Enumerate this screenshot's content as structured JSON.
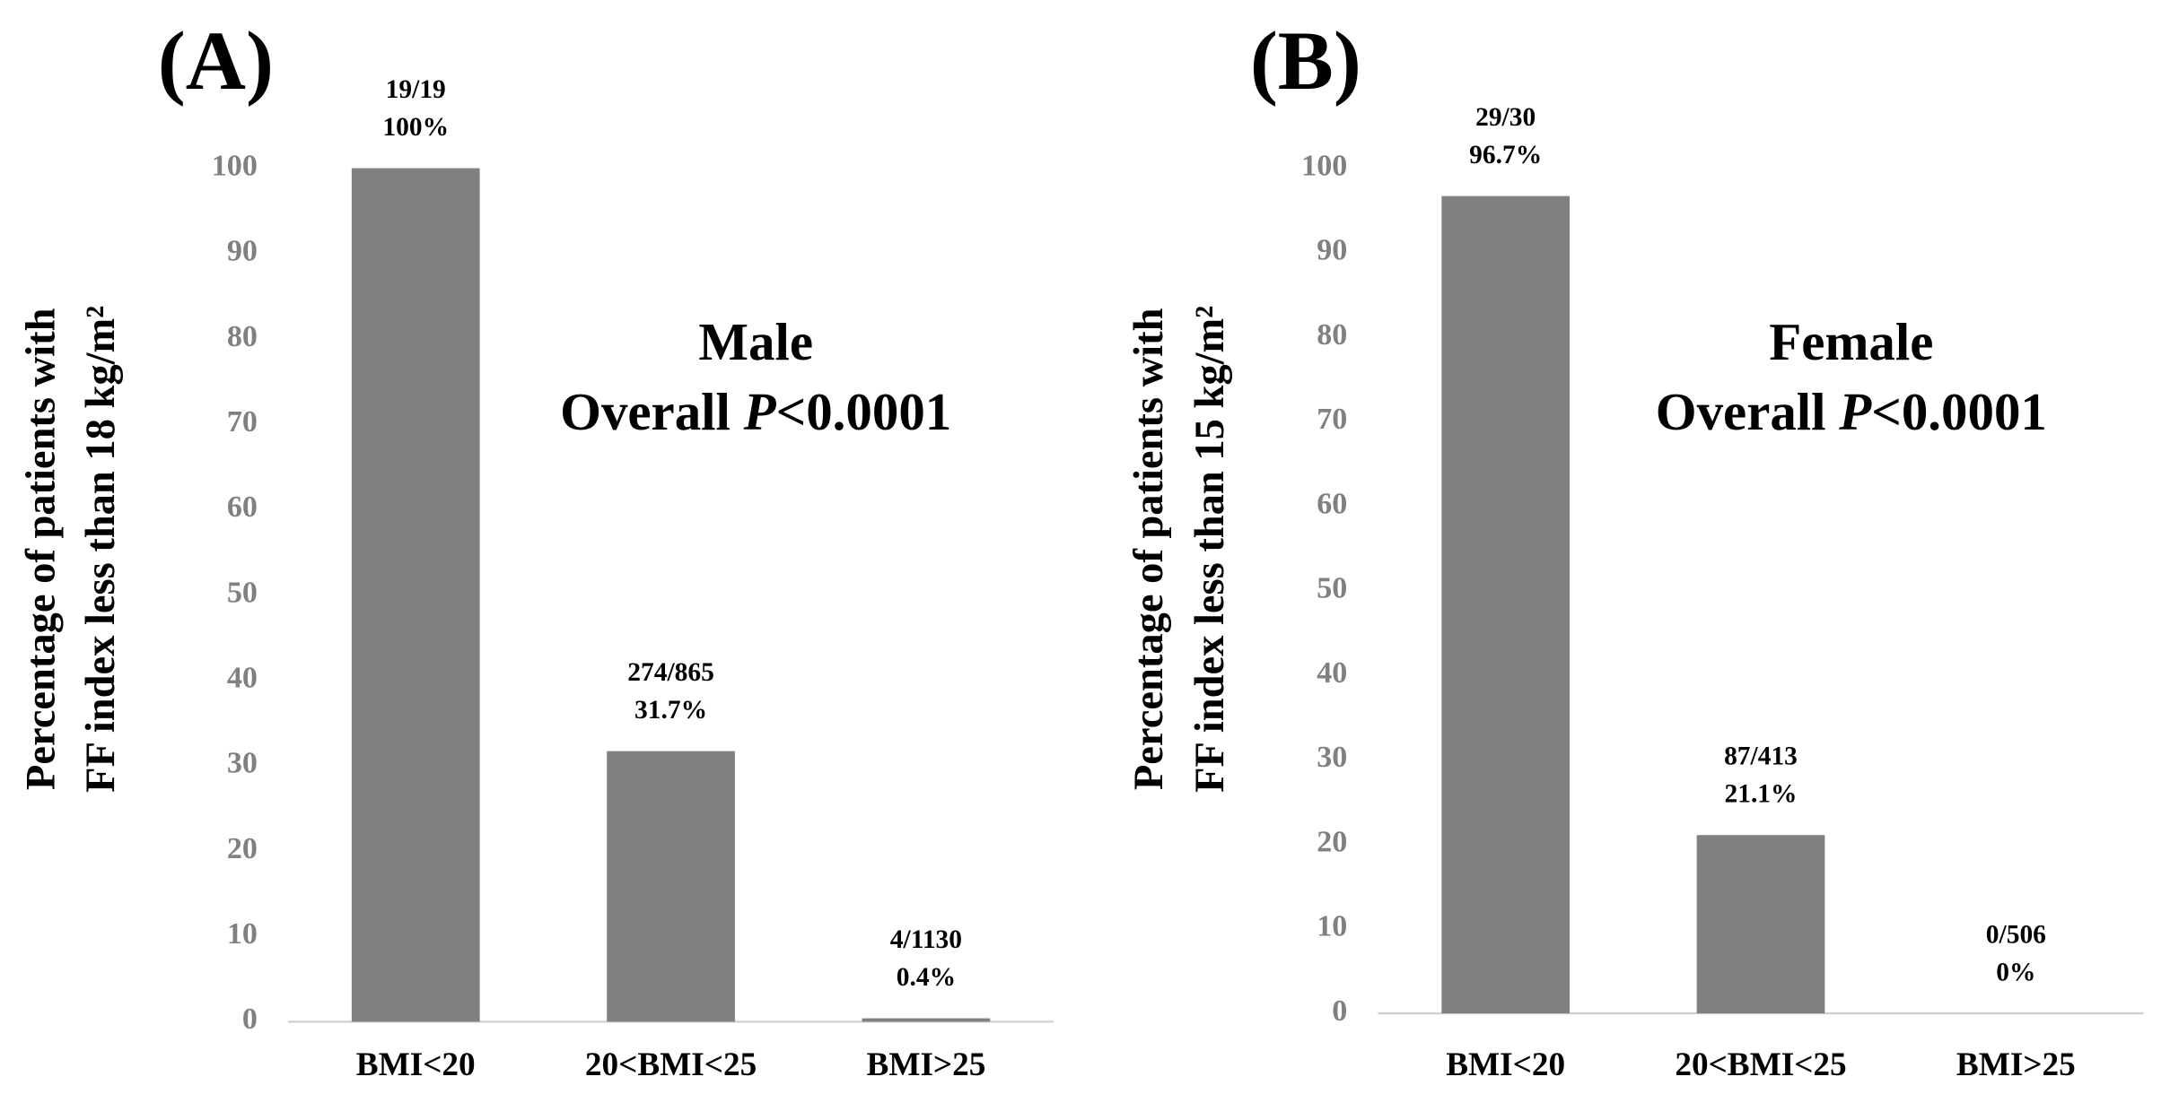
{
  "chart_data": [
    {
      "type": "bar",
      "panel_label": "(A)",
      "annotation": "Male",
      "p_value": {
        "prefix": "Overall ",
        "symbol": "P",
        "text": "<0.0001"
      },
      "ylabel": [
        "Percentage of patients with",
        "FF index less than 18 kg/m²"
      ],
      "categories": [
        "BMI<20",
        "20<BMI<25",
        "BMI>25"
      ],
      "values": [
        100,
        31.7,
        0.4
      ],
      "value_labels": [
        "100%",
        "31.7%",
        "0.4%"
      ],
      "fractions": [
        "19/19",
        "274/865",
        "4/1130"
      ],
      "color": "#808080",
      "ylim": [
        0,
        100
      ],
      "yticks": [
        0,
        10,
        20,
        30,
        40,
        50,
        60,
        70,
        80,
        90,
        100
      ]
    },
    {
      "type": "bar",
      "panel_label": "(B)",
      "annotation": "Female",
      "p_value": {
        "prefix": "Overall ",
        "symbol": "P",
        "text": "<0.0001"
      },
      "ylabel": [
        "Percentage of patients with",
        "FF index less than 15 kg/m²"
      ],
      "categories": [
        "BMI<20",
        "20<BMI<25",
        "BMI>25"
      ],
      "values": [
        96.7,
        21.1,
        0
      ],
      "value_labels": [
        "96.7%",
        "21.1%",
        "0%"
      ],
      "fractions": [
        "29/30",
        "87/413",
        "0/506"
      ],
      "color": "#808080",
      "ylim": [
        0,
        100
      ],
      "yticks": [
        0,
        10,
        20,
        30,
        40,
        50,
        60,
        70,
        80,
        90,
        100
      ]
    }
  ]
}
